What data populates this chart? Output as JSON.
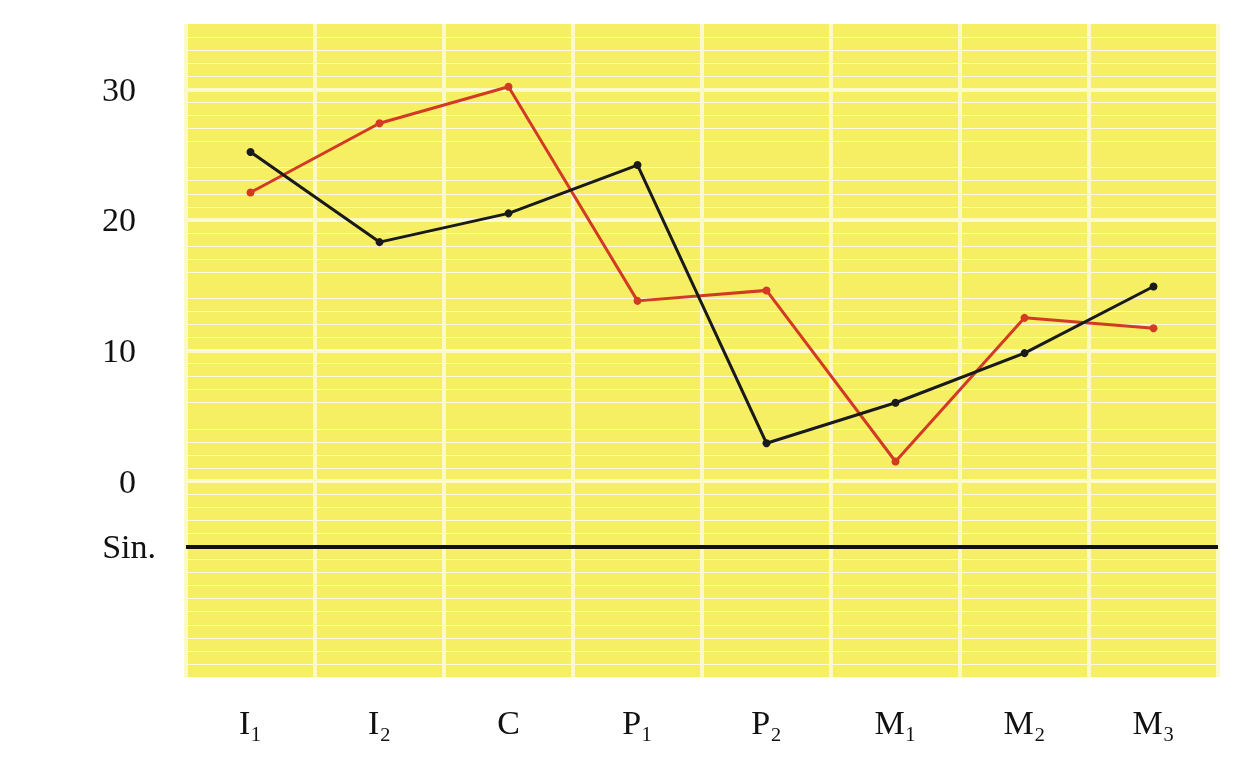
{
  "chart_data": {
    "type": "line",
    "categories": [
      "I₁",
      "I₂",
      "C",
      "P₁",
      "P₂",
      "M₁",
      "M₂",
      "M₃"
    ],
    "series": [
      {
        "color": "#d23a24",
        "values": [
          22.1,
          27.4,
          30.2,
          13.8,
          14.6,
          1.5,
          12.5,
          11.7
        ]
      },
      {
        "color": "#1a1a1a",
        "values": [
          25.2,
          18.3,
          20.5,
          24.2,
          2.9,
          6.0,
          9.8,
          14.9
        ]
      }
    ],
    "ylim": [
      -15,
      35
    ],
    "yticks": [
      0,
      10,
      20,
      30
    ],
    "ref_lines": [
      {
        "axis": "y",
        "value": -5,
        "label": "Sin.",
        "color": "#111111"
      }
    ],
    "grid": true,
    "marker": "circle",
    "line_style": "solid"
  }
}
